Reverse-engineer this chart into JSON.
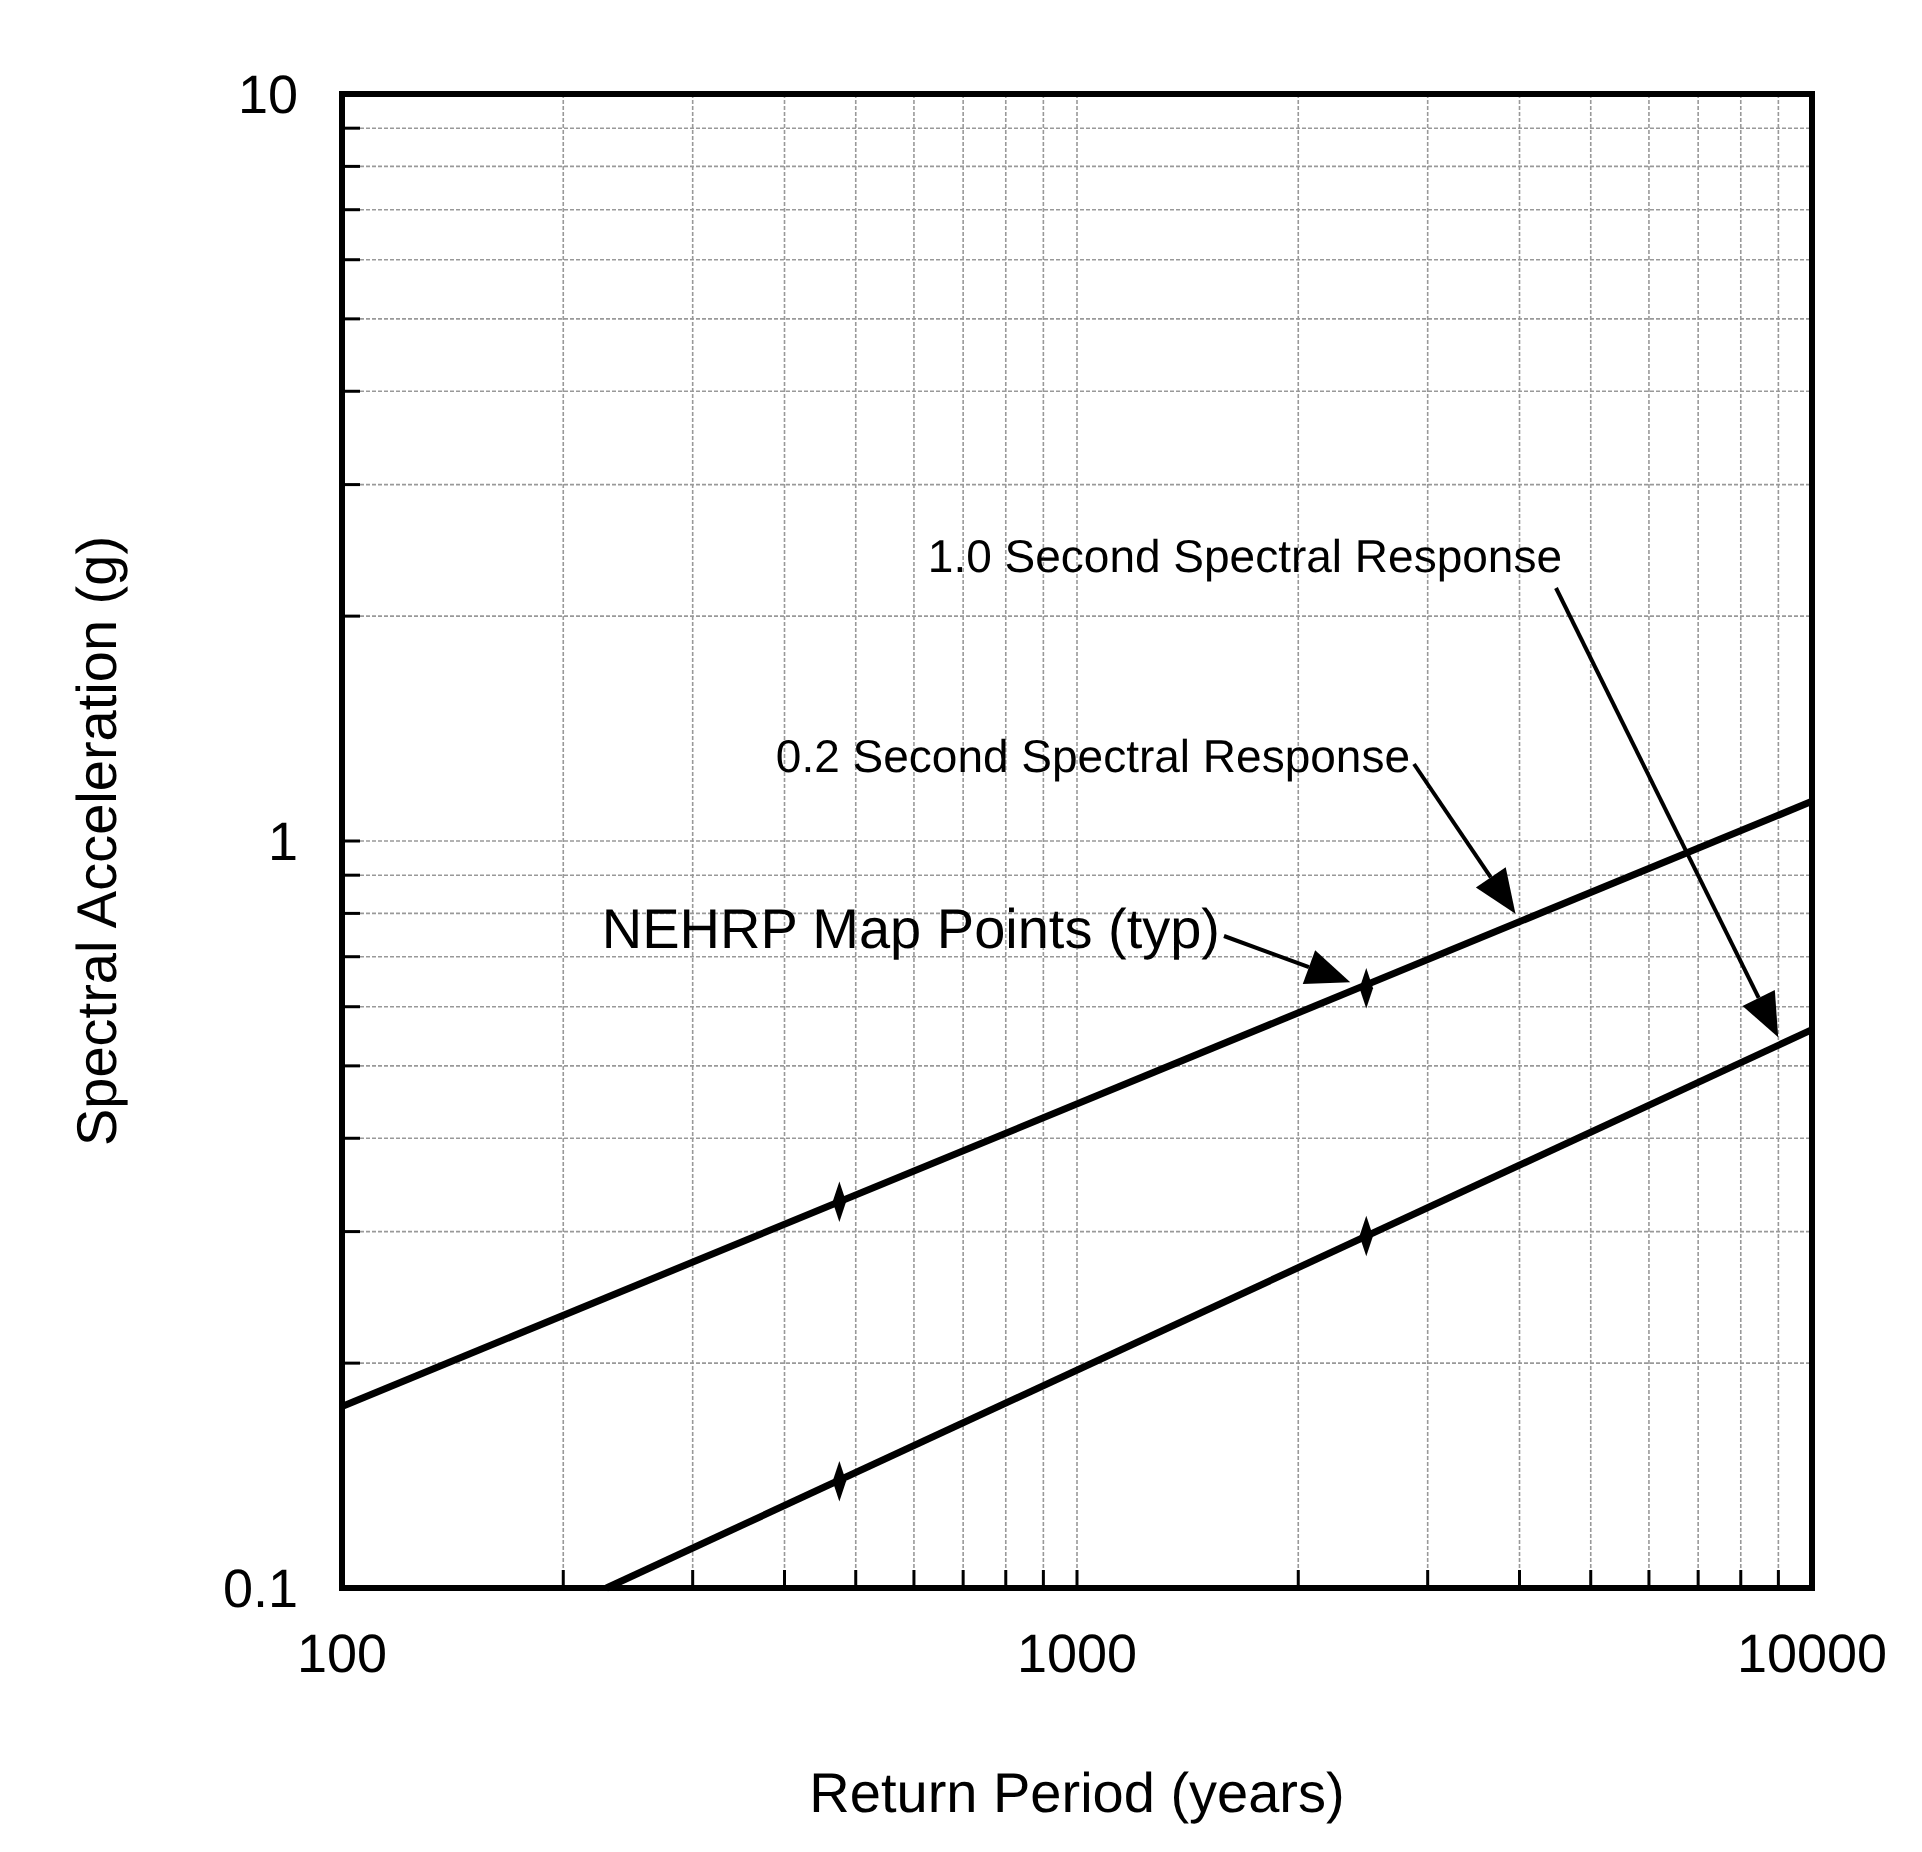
{
  "chart_data": {
    "type": "line",
    "xlabel": "Return Period (years)",
    "ylabel": "Spectral Acceleration (g)",
    "log": "xy",
    "grid": true,
    "marker": "none",
    "line_style": "solid",
    "xlim": [
      100,
      10000
    ],
    "ylim": [
      0.1,
      10
    ],
    "xticks": [
      100,
      {
        "value": 200,
        "label": null
      },
      {
        "value": 300,
        "label": null
      },
      {
        "value": 400,
        "label": null
      },
      {
        "value": 500,
        "label": null
      },
      {
        "value": 600,
        "label": null
      },
      {
        "value": 700,
        "label": null
      },
      {
        "value": 800,
        "label": null
      },
      {
        "value": 900,
        "label": null
      },
      1000,
      {
        "value": 2000,
        "label": null
      },
      {
        "value": 3000,
        "label": null
      },
      {
        "value": 4000,
        "label": null
      },
      {
        "value": 5000,
        "label": null
      },
      {
        "value": 6000,
        "label": null
      },
      {
        "value": 7000,
        "label": null
      },
      {
        "value": 8000,
        "label": null
      },
      {
        "value": 9000,
        "label": null
      },
      10000
    ],
    "yticks": [
      0.1,
      {
        "value": 0.2,
        "label": null
      },
      {
        "value": 0.3,
        "label": null
      },
      {
        "value": 0.4,
        "label": null
      },
      {
        "value": 0.5,
        "label": null
      },
      {
        "value": 0.6,
        "label": null
      },
      {
        "value": 0.7,
        "label": null
      },
      {
        "value": 0.8,
        "label": null
      },
      {
        "value": 0.9,
        "label": null
      },
      1,
      {
        "value": 2,
        "label": null
      },
      {
        "value": 3,
        "label": null
      },
      {
        "value": 4,
        "label": null
      },
      {
        "value": 5,
        "label": null
      },
      {
        "value": 6,
        "label": null
      },
      {
        "value": 7,
        "label": null
      },
      {
        "value": 8,
        "label": null
      },
      {
        "value": 9,
        "label": null
      },
      10
    ],
    "series": [
      {
        "color": "#000000",
        "x": [
          100,
          10000
        ],
        "values": [
          0.175,
          1.13
        ]
      },
      {
        "color": "#000000",
        "x": [
          229,
          10000
        ],
        "values": [
          0.1,
          0.559
        ]
      },
      {
        "type": "scatter",
        "marker": "diamond",
        "color": "#000000",
        "x": [
          475,
          2475,
          475,
          2475
        ],
        "values": [
          0.329,
          0.635,
          0.139,
          0.296
        ]
      }
    ],
    "annotations": [
      "1.0 Second Spectral Response",
      "0.2 Second Spectral Response",
      {
        "text": "NEHRP Map Points (typ)",
        "x": 2475,
        "y": 0.635
      }
    ]
  }
}
